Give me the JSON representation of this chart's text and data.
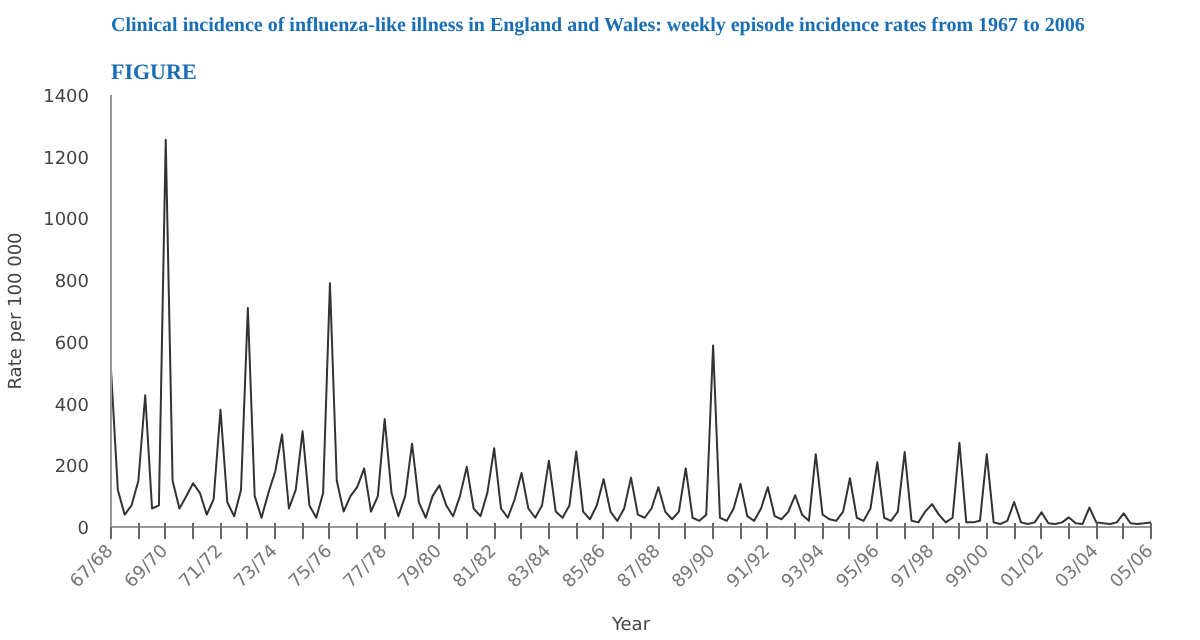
{
  "chart_data": {
    "type": "line",
    "title": "Clinical incidence of influenza-like illness in England and Wales: weekly episode incidence rates from 1967 to 2006",
    "annotations": [
      "FIGURE"
    ],
    "xlabel": "Year",
    "ylabel": "Rate per 100 000",
    "ylim": [
      0,
      1400
    ],
    "yticks": [
      0,
      200,
      400,
      600,
      800,
      1000,
      1200,
      1400
    ],
    "categories": [
      "67/68",
      null,
      null,
      null,
      null,
      null,
      null,
      null,
      "69/70",
      null,
      null,
      null,
      null,
      null,
      null,
      null,
      "71/72",
      null,
      null,
      null,
      null,
      null,
      null,
      null,
      "73/74",
      null,
      null,
      null,
      null,
      null,
      null,
      null,
      "75/76",
      null,
      null,
      null,
      null,
      null,
      null,
      null,
      "77/78",
      null,
      null,
      null,
      null,
      null,
      null,
      null,
      "79/80",
      null,
      null,
      null,
      null,
      null,
      null,
      null,
      "81/82",
      null,
      null,
      null,
      null,
      null,
      null,
      null,
      "83/84",
      null,
      null,
      null,
      null,
      null,
      null,
      null,
      "85/86",
      null,
      null,
      null,
      null,
      null,
      null,
      null,
      "87/88",
      null,
      null,
      null,
      null,
      null,
      null,
      null,
      "89/90",
      null,
      null,
      null,
      null,
      null,
      null,
      null,
      "91/92",
      null,
      null,
      null,
      null,
      null,
      null,
      null,
      "93/94",
      null,
      null,
      null,
      null,
      null,
      null,
      null,
      "95/96",
      null,
      null,
      null,
      null,
      null,
      null,
      null,
      "97/98",
      null,
      null,
      null,
      null,
      null,
      null,
      null,
      "99/00",
      null,
      null,
      null,
      null,
      null,
      null,
      null,
      "01/02",
      null,
      null,
      null,
      null,
      null,
      null,
      null,
      "03/04",
      null,
      null,
      null,
      null,
      null,
      null,
      null,
      "05/06"
    ],
    "grid": false,
    "series": [
      {
        "color": "#333333",
        "values": [
          510,
          120,
          40,
          70,
          150,
          427,
          60,
          70,
          1255,
          150,
          60,
          100,
          142,
          110,
          40,
          90,
          380,
          80,
          35,
          120,
          710,
          100,
          30,
          110,
          180,
          300,
          60,
          120,
          310,
          70,
          30,
          110,
          790,
          150,
          50,
          100,
          130,
          190,
          50,
          100,
          350,
          110,
          35,
          100,
          270,
          80,
          30,
          100,
          135,
          70,
          35,
          100,
          195,
          60,
          35,
          110,
          255,
          60,
          30,
          90,
          175,
          60,
          30,
          70,
          215,
          50,
          30,
          70,
          245,
          50,
          25,
          70,
          155,
          50,
          20,
          60,
          160,
          40,
          30,
          60,
          129,
          50,
          25,
          50,
          190,
          30,
          20,
          40,
          588,
          30,
          20,
          60,
          140,
          35,
          20,
          60,
          129,
          35,
          25,
          50,
          103,
          40,
          20,
          236,
          40,
          25,
          20,
          50,
          158,
          30,
          20,
          60,
          210,
          30,
          20,
          50,
          243,
          20,
          15,
          50,
          74,
          40,
          15,
          30,
          273,
          15,
          15,
          20,
          236,
          15,
          10,
          20,
          81,
          15,
          10,
          15,
          48,
          12,
          10,
          15,
          31,
          12,
          10,
          63,
          15,
          12,
          10,
          15,
          44,
          12,
          10,
          12,
          15
        ]
      }
    ]
  }
}
